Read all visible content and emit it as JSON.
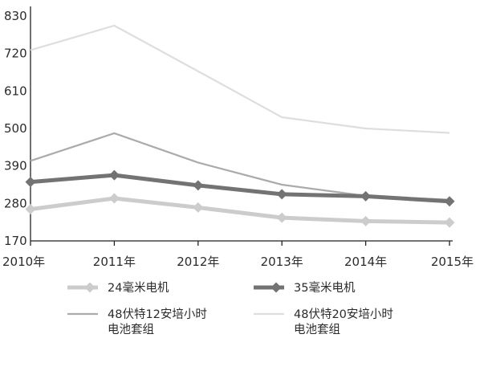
{
  "chart_data": {
    "type": "line",
    "title": "",
    "xlabel": "",
    "ylabel": "",
    "categories": [
      "2010年",
      "2011年",
      "2012年",
      "2013年",
      "2014年",
      "2015年"
    ],
    "y_ticks": [
      170,
      280,
      390,
      500,
      610,
      720,
      830
    ],
    "ylim": [
      170,
      830
    ],
    "grid": false,
    "legend_position": "bottom",
    "series": [
      {
        "name": "24毫米电机",
        "values": [
          263,
          295,
          268,
          238,
          228,
          224
        ],
        "color": "#cccccc",
        "line_width": "thick",
        "marker": "diamond"
      },
      {
        "name": "35毫米电机",
        "values": [
          343,
          363,
          333,
          307,
          301,
          286
        ],
        "color": "#737373",
        "line_width": "thick",
        "marker": "diamond"
      },
      {
        "name": "48伏特12安培小时电池套组",
        "values": [
          405,
          486,
          400,
          335,
          302,
          291
        ],
        "color": "#ababab",
        "line_width": "thin",
        "marker": "none"
      },
      {
        "name": "48伏特20安培小时电池套组",
        "values": [
          730,
          802,
          668,
          533,
          500,
          487
        ],
        "color": "#dedede",
        "line_width": "thin",
        "marker": "none"
      }
    ],
    "legend": [
      {
        "lines": [
          "24毫米电机"
        ]
      },
      {
        "lines": [
          "35毫米电机"
        ]
      },
      {
        "lines": [
          "48伏特12安培小时",
          "电池套组"
        ]
      },
      {
        "lines": [
          "48伏特20安培小时",
          "电池套组"
        ]
      }
    ]
  }
}
